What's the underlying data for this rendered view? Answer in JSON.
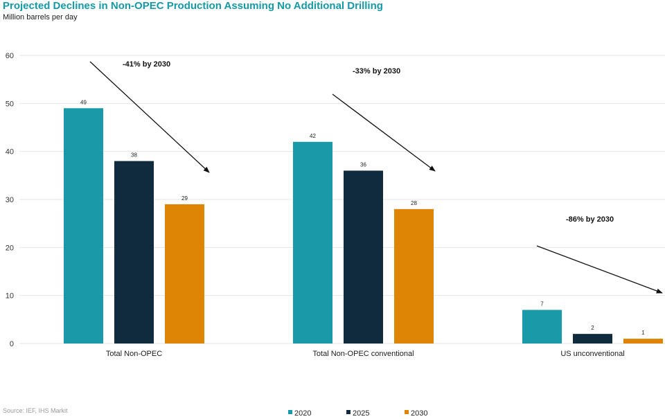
{
  "header": {
    "title": "Projected Declines in Non-OPEC Production Assuming No Additional Drilling",
    "subtitle": "Million barrels per day"
  },
  "footer": {
    "source": "Source: IEF, IHS Markit"
  },
  "colors": {
    "2020": "#1a9aa8",
    "2025": "#0f2b3d",
    "2030": "#de8505",
    "grid": "#e4e4e4"
  },
  "chart_data": {
    "type": "bar",
    "title": "Projected Declines in Non-OPEC Production Assuming No Additional Drilling",
    "ylabel": "Million barrels per day",
    "xlabel": "",
    "ylim": [
      0,
      60
    ],
    "yticks": [
      0,
      10,
      20,
      30,
      40,
      50,
      60
    ],
    "grid": true,
    "legend_position": "bottom",
    "categories": [
      "Total Non-OPEC",
      "Total Non-OPEC conventional",
      "US unconventional"
    ],
    "series": [
      {
        "name": "2020",
        "values": [
          49,
          42,
          7
        ]
      },
      {
        "name": "2025",
        "values": [
          38,
          36,
          2
        ]
      },
      {
        "name": "2030",
        "values": [
          29,
          28,
          1
        ]
      }
    ],
    "annotations": [
      "-41% by 2030",
      "-33% by 2030",
      "-86% by 2030"
    ]
  }
}
